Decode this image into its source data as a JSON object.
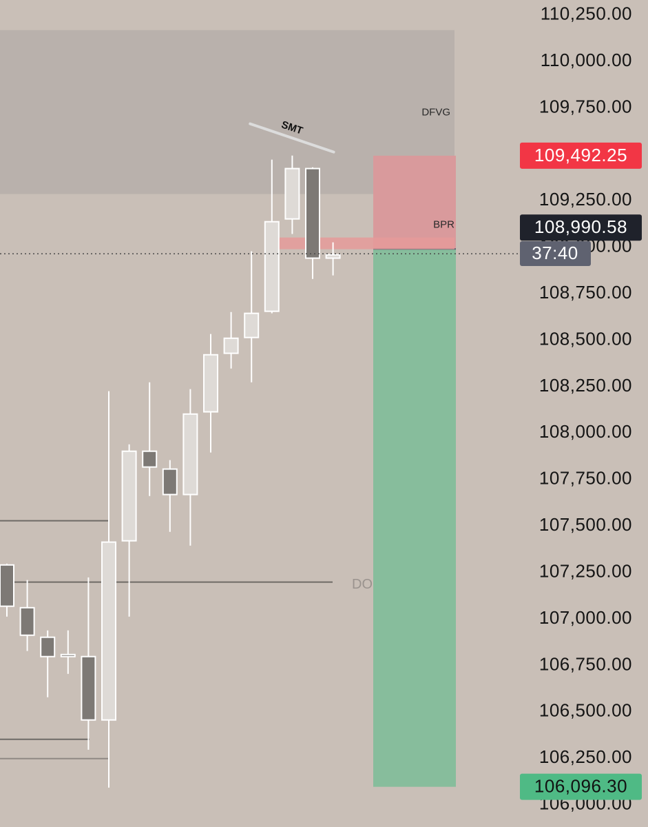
{
  "chart_data": {
    "type": "candlestick",
    "ylim": [
      105880,
      110330
    ],
    "yticks": [
      {
        "value": 106000,
        "label": "106,000.00"
      },
      {
        "value": 106250,
        "label": "106,250.00"
      },
      {
        "value": 106500,
        "label": "106,500.00"
      },
      {
        "value": 106750,
        "label": "106,750.00"
      },
      {
        "value": 107000,
        "label": "107,000.00"
      },
      {
        "value": 107250,
        "label": "107,250.00"
      },
      {
        "value": 107500,
        "label": "107,500.00"
      },
      {
        "value": 107750,
        "label": "107,750.00"
      },
      {
        "value": 108000,
        "label": "108,000.00"
      },
      {
        "value": 108250,
        "label": "108,250.00"
      },
      {
        "value": 108500,
        "label": "108,500.00"
      },
      {
        "value": 108750,
        "label": "108,750.00"
      },
      {
        "value": 109000,
        "label": "109,000.00"
      },
      {
        "value": 109250,
        "label": "109,250.00"
      },
      {
        "value": 109500,
        "label": "109,500.00"
      },
      {
        "value": 109750,
        "label": "109,750.00"
      },
      {
        "value": 110000,
        "label": "110,000.00"
      },
      {
        "value": 110250,
        "label": "110,250.00"
      }
    ],
    "open": [
      107290,
      107060,
      106901,
      106808,
      106797,
      106456,
      107420,
      107902,
      107806,
      107669,
      108114,
      108429,
      108514,
      108655,
      109152,
      109423,
      108941
    ],
    "high": [
      107297,
      107209,
      106938,
      106938,
      107223,
      108225,
      107939,
      108273,
      107854,
      108236,
      108533,
      108651,
      108978,
      109471,
      109493,
      109430,
      109026
    ],
    "low": [
      107012,
      106827,
      106578,
      106704,
      106296,
      106092,
      107012,
      107661,
      107468,
      107394,
      107895,
      108347,
      108273,
      108644,
      109071,
      108829,
      108848
    ],
    "close": [
      107068,
      106912,
      106797,
      106797,
      106456,
      107413,
      107902,
      107817,
      107669,
      108102,
      108421,
      108510,
      108644,
      109137,
      109423,
      108941,
      108959
    ],
    "up_color": "#dedad6",
    "down_color": "#7d7975",
    "dfvg": {
      "label": "DFVG",
      "top": 110168,
      "bottom": 109286
    },
    "bpr": {
      "label": "BPR",
      "top": 109052,
      "bottom": 108989
    },
    "smt": {
      "label": "SMT",
      "values": [
        109664,
        109512
      ]
    },
    "daily_open": {
      "label": "DO",
      "value": 107198
    },
    "levels": [
      107528,
      106352,
      106248
    ],
    "position": {
      "stop": {
        "value": 109492.25,
        "label": "109,492.25"
      },
      "entry": 108990.58,
      "target": {
        "value": 106096.3,
        "label": "106,096.30"
      }
    },
    "last_price": {
      "value": 108990.58,
      "label": "108,990.58"
    },
    "countdown": "37:40"
  }
}
